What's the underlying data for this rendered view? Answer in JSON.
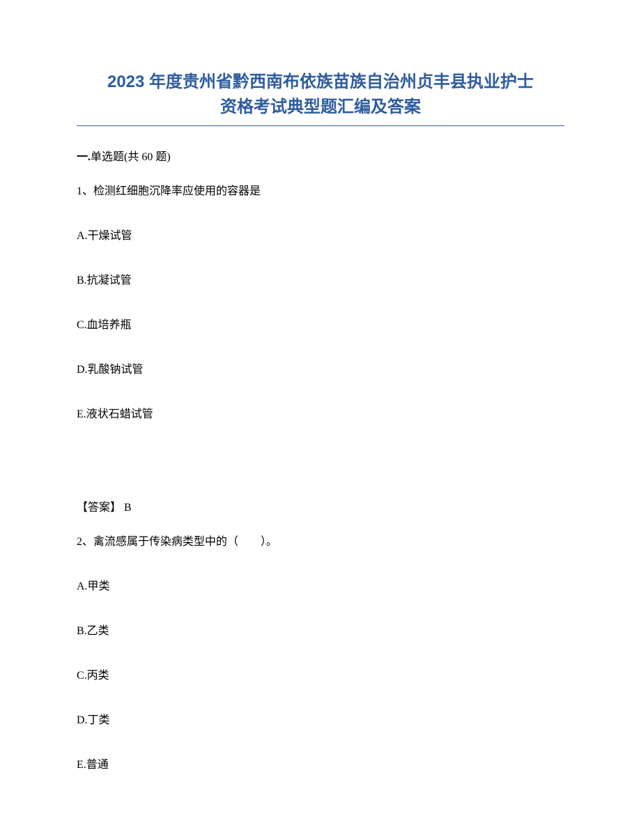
{
  "title_line1": "2023 年度贵州省黔西南布依族苗族自治州贞丰县执业护士",
  "title_line2": "资格考试典型题汇编及答案",
  "section_header_bold": "一.",
  "section_header_text": "单选题(共 60 题)",
  "question1": {
    "number": "1、",
    "text": "检测红细胞沉降率应使用的容器是",
    "options": {
      "A": "A.干燥试管",
      "B": "B.抗凝试管",
      "C": "C.血培养瓶",
      "D": "D.乳酸钠试管",
      "E": "E.液状石蜡试管"
    },
    "answer_label": "【答案】",
    "answer_value": " B"
  },
  "question2": {
    "number": "2、",
    "text": "禽流感属于传染病类型中的（　　）。",
    "options": {
      "A": "A.甲类",
      "B": "B.乙类",
      "C": "C.丙类",
      "D": "D.丁类",
      "E": "E.普通"
    }
  },
  "colors": {
    "title_color": "#2e5c9e",
    "text_color": "#000000",
    "background": "#ffffff",
    "border_color": "#2e5c9e"
  },
  "typography": {
    "title_fontsize": 24,
    "body_fontsize": 16,
    "title_font": "SimHei",
    "body_font": "SimSun"
  }
}
